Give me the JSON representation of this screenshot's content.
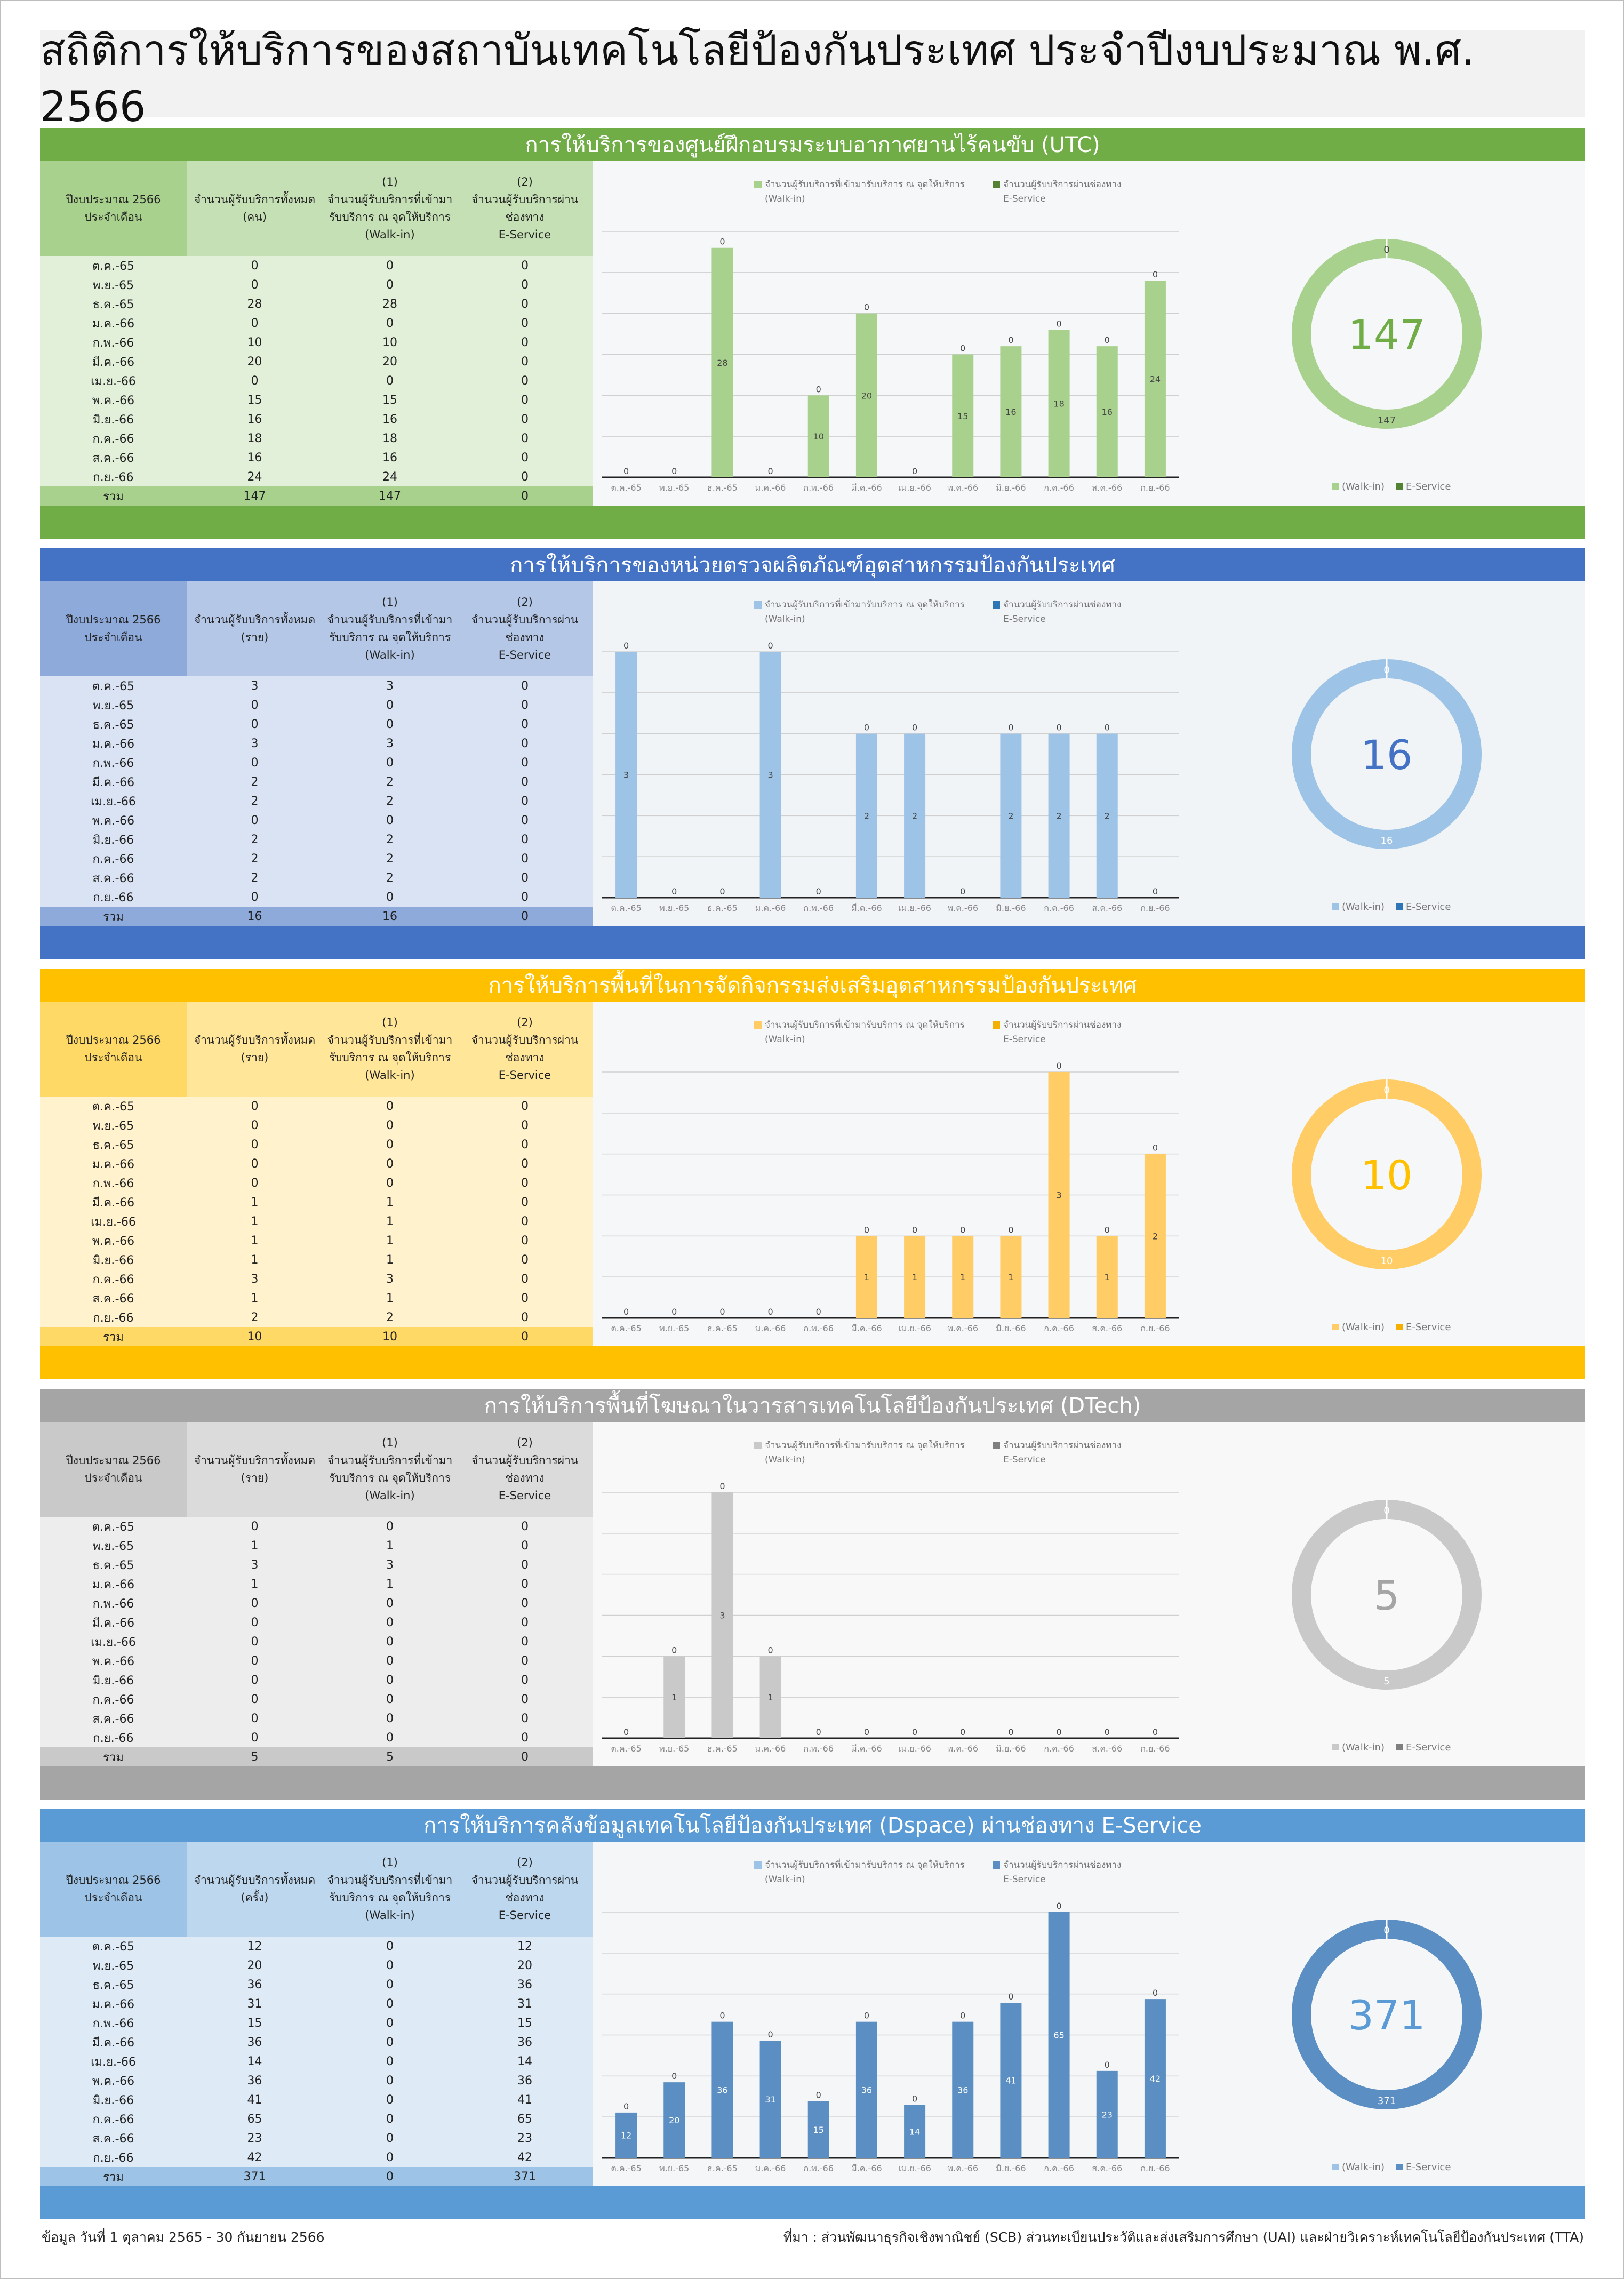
{
  "title": "สถิติการให้บริการของสถาบันเทคโนโลยีป้องกันประเทศ ประจำปีงบประมาณ พ.ศ. 2566",
  "table_headers": {
    "col0": "ปีงบประมาณ 2566\nประจำเดือน",
    "col2": "(1)\nจำนวนผู้รับบริการที่เข้ามา\nรับบริการ ณ จุดให้บริการ\n(Walk-in)",
    "col3": "(2)\nจำนวนผู้รับบริการผ่าน\nช่องทาง\nE-Service"
  },
  "months": [
    "ต.ค.-65",
    "พ.ย.-65",
    "ธ.ค.-65",
    "ม.ค.-66",
    "ก.พ.-66",
    "มี.ค.-66",
    "เม.ย.-66",
    "พ.ค.-66",
    "มิ.ย.-66",
    "ก.ค.-66",
    "ส.ค.-66",
    "ก.ย.-66"
  ],
  "total_label": "รวม",
  "legend": {
    "walkin_full": "จำนวนผู้รับบริการที่เข้ามารับบริการ ณ จุดให้บริการ",
    "walkin_sub": "(Walk-in)",
    "eservice_full": "จำนวนผู้รับบริการผ่านช่องทาง",
    "eservice_sub": "E-Service",
    "walkin_short": "(Walk-in)",
    "eservice_short": "E-Service"
  },
  "sections": [
    {
      "title": "การให้บริการของศูนย์ฝึกอบรมระบบอากาศยานไร้คนขับ (UTC)",
      "col1_header": "จำนวนผู้รับบริการทั้งหมด\n(คน)",
      "colors": {
        "header": "#70ad47",
        "th": "#a9d18e",
        "thead": "#c5e0b4",
        "tbody": "#e2efd9",
        "tfoot": "#a9d18e",
        "walkin": "#a9d18e",
        "eservice": "#548235",
        "accent": "#70ad47",
        "bg": "#e9eef1"
      },
      "totals": [
        "147",
        "147",
        "0"
      ],
      "total_value": "147"
    },
    {
      "title": "การให้บริการของหน่วยตรวจผลิตภัณฑ์อุตสาหกรรมป้องกันประเทศ",
      "col1_header": "จำนวนผู้รับบริการทั้งหมด\n(ราย)",
      "colors": {
        "header": "#4472c4",
        "th": "#8eaadb",
        "thead": "#b4c7e7",
        "tbody": "#dae3f3",
        "tfoot": "#8eaadb",
        "walkin": "#9dc3e6",
        "eservice": "#2e75b6",
        "accent": "#4472c4",
        "bg": "#dde6ee"
      },
      "totals": [
        "16",
        "16",
        "0"
      ],
      "total_value": "16"
    },
    {
      "title": "การให้บริการพื้นที่ในการจัดกิจกรรมส่งเสริมอุตสาหกรรมป้องกันประเทศ",
      "col1_header": "จำนวนผู้รับบริการทั้งหมด\n(ราย)",
      "colors": {
        "header": "#ffc000",
        "th": "#ffd966",
        "thead": "#ffe699",
        "tbody": "#fff2cc",
        "tfoot": "#ffd966",
        "walkin": "#ffcc66",
        "eservice": "#f4b000",
        "accent": "#ffc000",
        "bg": "#eceeef"
      },
      "totals": [
        "10",
        "10",
        "0"
      ],
      "total_value": "10"
    },
    {
      "title": "การให้บริการพื้นที่โฆษณาในวารสารเทคโนโลยีป้องกันประเทศ (DTech)",
      "col1_header": "จำนวนผู้รับบริการทั้งหมด\n(ราย)",
      "colors": {
        "header": "#a5a5a5",
        "th": "#c9c9c9",
        "thead": "#dbdbdb",
        "tbody": "#ededed",
        "tfoot": "#c9c9c9",
        "walkin": "#c9c9c9",
        "eservice": "#7f7f7f",
        "accent": "#a5a5a5",
        "bg": "#efefef"
      },
      "totals": [
        "5",
        "5",
        "0"
      ],
      "total_value": "5"
    },
    {
      "title": "การให้บริการคลังข้อมูลเทคโนโลยีป้องกันประเทศ (Dspace) ผ่านช่องทาง E-Service",
      "col1_header": "จำนวนผู้รับบริการทั้งหมด\n(ครั้ง)",
      "colors": {
        "header": "#5b9bd5",
        "th": "#9dc3e6",
        "thead": "#bdd7ee",
        "tbody": "#deebf7",
        "tfoot": "#9dc3e6",
        "walkin": "#9dc3e6",
        "eservice": "#5b8ec2",
        "accent": "#5b9bd5",
        "bg": "#e6ebef"
      },
      "totals": [
        "371",
        "0",
        "371"
      ],
      "total_value": "371"
    }
  ],
  "chart_data": [
    {
      "type": "bar",
      "title": "",
      "categories": [
        "ต.ค.-65",
        "พ.ย.-65",
        "ธ.ค.-65",
        "ม.ค.-66",
        "ก.พ.-66",
        "มี.ค.-66",
        "เม.ย.-66",
        "พ.ค.-66",
        "มิ.ย.-66",
        "ก.ค.-66",
        "ส.ค.-66",
        "ก.ย.-66"
      ],
      "total": [
        0,
        0,
        28,
        0,
        10,
        20,
        0,
        15,
        16,
        18,
        16,
        24
      ],
      "series": [
        {
          "name": "จำนวนผู้รับบริการที่เข้ามารับบริการ ณ จุดให้บริการ (Walk-in)",
          "values": [
            0,
            0,
            28,
            0,
            10,
            20,
            0,
            15,
            16,
            18,
            16,
            24
          ]
        },
        {
          "name": "จำนวนผู้รับบริการผ่านช่องทาง E-Service",
          "values": [
            0,
            0,
            0,
            0,
            0,
            0,
            0,
            0,
            0,
            0,
            0,
            0
          ]
        }
      ],
      "stacked": true,
      "ylim": [
        0,
        30
      ],
      "donut": {
        "type": "pie",
        "labels": [
          "(Walk-in)",
          "E-Service"
        ],
        "values": [
          147,
          0
        ],
        "center": "147"
      }
    },
    {
      "type": "bar",
      "title": "",
      "categories": [
        "ต.ค.-65",
        "พ.ย.-65",
        "ธ.ค.-65",
        "ม.ค.-66",
        "ก.พ.-66",
        "มี.ค.-66",
        "เม.ย.-66",
        "พ.ค.-66",
        "มิ.ย.-66",
        "ก.ค.-66",
        "ส.ค.-66",
        "ก.ย.-66"
      ],
      "total": [
        3,
        0,
        0,
        3,
        0,
        2,
        2,
        0,
        2,
        2,
        2,
        0
      ],
      "series": [
        {
          "name": "จำนวนผู้รับบริการที่เข้ามารับบริการ ณ จุดให้บริการ (Walk-in)",
          "values": [
            3,
            0,
            0,
            3,
            0,
            2,
            2,
            0,
            2,
            2,
            2,
            0
          ]
        },
        {
          "name": "จำนวนผู้รับบริการผ่านช่องทาง E-Service",
          "values": [
            0,
            0,
            0,
            0,
            0,
            0,
            0,
            0,
            0,
            0,
            0,
            0
          ]
        }
      ],
      "stacked": true,
      "ylim": [
        0,
        3
      ],
      "donut": {
        "type": "pie",
        "labels": [
          "(Walk-in)",
          "E-Service"
        ],
        "values": [
          16,
          0
        ],
        "center": "16"
      }
    },
    {
      "type": "bar",
      "title": "",
      "categories": [
        "ต.ค.-65",
        "พ.ย.-65",
        "ธ.ค.-65",
        "ม.ค.-66",
        "ก.พ.-66",
        "มี.ค.-66",
        "เม.ย.-66",
        "พ.ค.-66",
        "มิ.ย.-66",
        "ก.ค.-66",
        "ส.ค.-66",
        "ก.ย.-66"
      ],
      "total": [
        0,
        0,
        0,
        0,
        0,
        1,
        1,
        1,
        1,
        3,
        1,
        2
      ],
      "series": [
        {
          "name": "จำนวนผู้รับบริการที่เข้ามารับบริการ ณ จุดให้บริการ (Walk-in)",
          "values": [
            0,
            0,
            0,
            0,
            0,
            1,
            1,
            1,
            1,
            3,
            1,
            2
          ]
        },
        {
          "name": "จำนวนผู้รับบริการผ่านช่องทาง E-Service",
          "values": [
            0,
            0,
            0,
            0,
            0,
            0,
            0,
            0,
            0,
            0,
            0,
            0
          ]
        }
      ],
      "stacked": true,
      "ylim": [
        0,
        3
      ],
      "donut": {
        "type": "pie",
        "labels": [
          "(Walk-in)",
          "E-Service"
        ],
        "values": [
          10,
          0
        ],
        "center": "10"
      }
    },
    {
      "type": "bar",
      "title": "",
      "categories": [
        "ต.ค.-65",
        "พ.ย.-65",
        "ธ.ค.-65",
        "ม.ค.-66",
        "ก.พ.-66",
        "มี.ค.-66",
        "เม.ย.-66",
        "พ.ค.-66",
        "มิ.ย.-66",
        "ก.ค.-66",
        "ส.ค.-66",
        "ก.ย.-66"
      ],
      "total": [
        0,
        1,
        3,
        1,
        0,
        0,
        0,
        0,
        0,
        0,
        0,
        0
      ],
      "series": [
        {
          "name": "จำนวนผู้รับบริการที่เข้ามารับบริการ ณ จุดให้บริการ (Walk-in)",
          "values": [
            0,
            1,
            3,
            1,
            0,
            0,
            0,
            0,
            0,
            0,
            0,
            0
          ]
        },
        {
          "name": "จำนวนผู้รับบริการผ่านช่องทาง E-Service",
          "values": [
            0,
            0,
            0,
            0,
            0,
            0,
            0,
            0,
            0,
            0,
            0,
            0
          ]
        }
      ],
      "stacked": true,
      "ylim": [
        0,
        3
      ],
      "donut": {
        "type": "pie",
        "labels": [
          "(Walk-in)",
          "E-Service"
        ],
        "values": [
          5,
          0
        ],
        "center": "5"
      }
    },
    {
      "type": "bar",
      "title": "",
      "categories": [
        "ต.ค.-65",
        "พ.ย.-65",
        "ธ.ค.-65",
        "ม.ค.-66",
        "ก.พ.-66",
        "มี.ค.-66",
        "เม.ย.-66",
        "พ.ค.-66",
        "มิ.ย.-66",
        "ก.ค.-66",
        "ส.ค.-66",
        "ก.ย.-66"
      ],
      "total": [
        12,
        20,
        36,
        31,
        15,
        36,
        14,
        36,
        41,
        65,
        23,
        42
      ],
      "series": [
        {
          "name": "จำนวนผู้รับบริการที่เข้ามารับบริการ ณ จุดให้บริการ (Walk-in)",
          "values": [
            0,
            0,
            0,
            0,
            0,
            0,
            0,
            0,
            0,
            0,
            0,
            0
          ]
        },
        {
          "name": "จำนวนผู้รับบริการผ่านช่องทาง E-Service",
          "values": [
            12,
            20,
            36,
            31,
            15,
            36,
            14,
            36,
            41,
            65,
            23,
            42
          ]
        }
      ],
      "stacked": true,
      "ylim": [
        0,
        65
      ],
      "donut": {
        "type": "pie",
        "labels": [
          "(Walk-in)",
          "E-Service"
        ],
        "values": [
          0,
          371
        ],
        "center": "371"
      }
    }
  ],
  "footer": {
    "left": "ข้อมูล วันที่  1 ตุลาคม 2565 - 30 กันยายน 2566",
    "right": "ที่มา : ส่วนพัฒนาธุรกิจเชิงพาณิชย์ (SCB)  ส่วนทะเบียนประวัติและส่งเสริมการศึกษา (UAI) และฝ่ายวิเคราะห์เทคโนโลยีป้องกันประเทศ (TTA)"
  }
}
